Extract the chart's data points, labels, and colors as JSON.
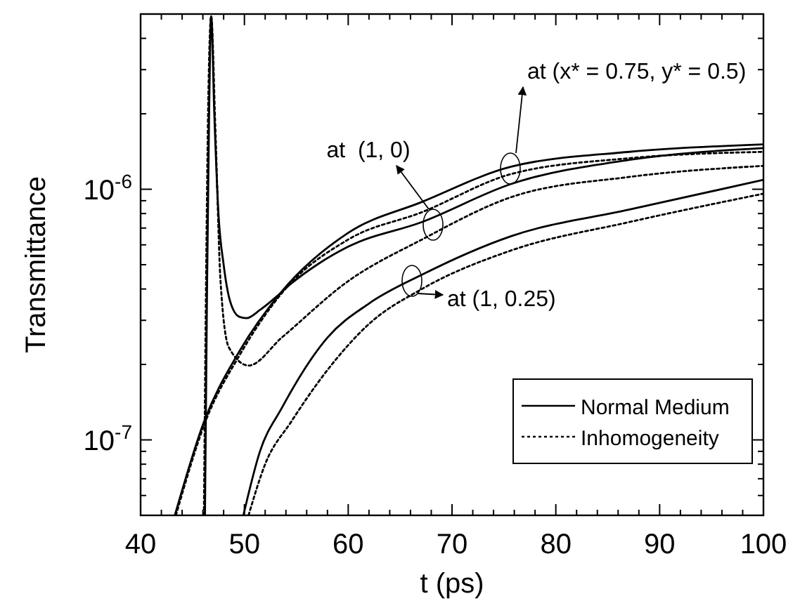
{
  "chart_data": {
    "type": "line",
    "xlabel": "t (ps)",
    "ylabel": "Transmittance",
    "log": "y",
    "xlim": [
      40,
      100
    ],
    "ylim": [
      5e-08,
      5e-06
    ],
    "xticks": [
      40,
      {
        "value": 42,
        "label": null
      },
      {
        "value": 44,
        "label": null
      },
      {
        "value": 46,
        "label": null
      },
      {
        "value": 48,
        "label": null
      },
      50,
      {
        "value": 52,
        "label": null
      },
      {
        "value": 54,
        "label": null
      },
      {
        "value": 56,
        "label": null
      },
      {
        "value": 58,
        "label": null
      },
      60,
      {
        "value": 62,
        "label": null
      },
      {
        "value": 64,
        "label": null
      },
      {
        "value": 66,
        "label": null
      },
      {
        "value": 68,
        "label": null
      },
      70,
      {
        "value": 72,
        "label": null
      },
      {
        "value": 74,
        "label": null
      },
      {
        "value": 76,
        "label": null
      },
      {
        "value": 78,
        "label": null
      },
      80,
      {
        "value": 82,
        "label": null
      },
      {
        "value": 84,
        "label": null
      },
      {
        "value": 86,
        "label": null
      },
      {
        "value": 88,
        "label": null
      },
      90,
      {
        "value": 92,
        "label": null
      },
      {
        "value": 94,
        "label": null
      },
      {
        "value": 96,
        "label": null
      },
      {
        "value": 98,
        "label": null
      },
      100
    ],
    "yticks": [
      {
        "value": 6e-08,
        "label": null
      },
      {
        "value": 7e-08,
        "label": null
      },
      {
        "value": 8e-08,
        "label": null
      },
      {
        "value": 9e-08,
        "label": null
      },
      {
        "value": 1e-07,
        "label": "10$^{-7}$"
      },
      {
        "value": 2e-07,
        "label": null
      },
      {
        "value": 3e-07,
        "label": null
      },
      {
        "value": 4e-07,
        "label": null
      },
      {
        "value": 5e-07,
        "label": null
      },
      {
        "value": 6e-07,
        "label": null
      },
      {
        "value": 7e-07,
        "label": null
      },
      {
        "value": 8e-07,
        "label": null
      },
      {
        "value": 9e-07,
        "label": null
      },
      {
        "value": 1e-06,
        "label": "10$^{-6}$"
      },
      {
        "value": 2e-06,
        "label": null
      },
      {
        "value": 3e-06,
        "label": null
      },
      {
        "value": 4e-06,
        "label": null
      }
    ],
    "legend": "bottom right",
    "grid": false,
    "series": [
      {
        "name": "Normal Medium",
        "color": "#000000",
        "line_style": "solid",
        "x": [
          43.3,
          46.1,
          49.5,
          53.6,
          60,
          67.1,
          75.7,
          87.1,
          100
        ],
        "values": [
          5e-08,
          1.18e-07,
          2.25e-07,
          3.91e-07,
          6.7e-07,
          8.9e-07,
          1.23e-06,
          1.41e-06,
          1.51e-06
        ]
      },
      {
        "name": "Inhomogeneity",
        "color": "#000000",
        "line_style": "dotted",
        "x": [
          43.4,
          46.2,
          49.6,
          53.6,
          60,
          67.1,
          75.7,
          87.1,
          100
        ],
        "values": [
          5e-08,
          1.17e-07,
          2.2e-07,
          3.85e-07,
          6.3e-07,
          8.1e-07,
          1.15e-06,
          1.33e-06,
          1.41e-06
        ]
      },
      {
        "color": "#000000",
        "line_style": "solid",
        "x": [
          46.2,
          46.4,
          46.6,
          46.8,
          47.1,
          47.5,
          48,
          48.6,
          49.5,
          50.2,
          51.5,
          53,
          54.5,
          57,
          60,
          67.1,
          75.7,
          87.1,
          100
        ],
        "values": [
          5e-08,
          4e-07,
          2e-06,
          4.9e-06,
          2e-06,
          8e-07,
          5e-07,
          3.6e-07,
          3.1e-07,
          3.06e-07,
          3.3e-07,
          3.7e-07,
          4.2e-07,
          5e-07,
          5.9e-07,
          7.4e-07,
          1.05e-06,
          1.31e-06,
          1.46e-06
        ]
      },
      {
        "color": "#000000",
        "line_style": "dotted",
        "x": [
          46.1,
          46.3,
          46.5,
          46.8,
          47.2,
          47.7,
          48.5,
          50.4,
          53.6,
          60,
          67.1,
          75.7,
          87.1,
          100
        ],
        "values": [
          5e-08,
          4e-07,
          2e-06,
          4.9e-06,
          1.76e-06,
          4.3e-07,
          2.34e-07,
          1.98e-07,
          2.56e-07,
          4.3e-07,
          6.3e-07,
          9.3e-07,
          1.12e-06,
          1.24e-06
        ]
      },
      {
        "color": "#000000",
        "line_style": "solid",
        "x": [
          49.9,
          51.5,
          53.6,
          58,
          62,
          67.1,
          75.7,
          87.1,
          100
        ],
        "values": [
          5e-08,
          9e-08,
          1.34e-07,
          2.56e-07,
          3.5e-07,
          4.56e-07,
          6.5e-07,
          8.3e-07,
          1.09e-06
        ]
      },
      {
        "color": "#000000",
        "line_style": "dotted",
        "x": [
          50.4,
          52,
          54.5,
          58,
          62,
          67.1,
          75.7,
          87.1,
          100
        ],
        "values": [
          5e-08,
          8e-08,
          1.18e-07,
          1.9e-07,
          2.9e-07,
          4e-07,
          5.7e-07,
          7.4e-07,
          9.6e-07
        ]
      }
    ],
    "annotations": [
      "at (x* = 0.75, y* = 0.5)",
      "at  (1, 0)",
      "at (1, 0.25)"
    ]
  }
}
